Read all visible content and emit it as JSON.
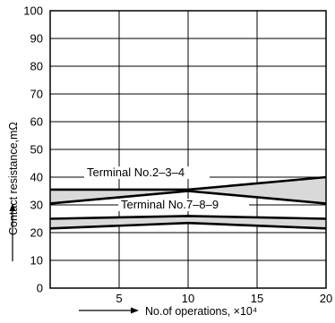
{
  "chart_data": {
    "type": "line",
    "title": "",
    "xlabel": "No.of operations, ×10⁴",
    "ylabel": "Contact resistance,mΩ",
    "xlim": [
      0,
      20
    ],
    "ylim": [
      0,
      100
    ],
    "x_ticks": [
      5,
      10,
      15,
      20
    ],
    "x_tick_labels": [
      "5",
      "10",
      "15",
      "20"
    ],
    "y_ticks": [
      0,
      10,
      20,
      30,
      40,
      50,
      60,
      70,
      80,
      90,
      100
    ],
    "y_tick_labels": [
      "0",
      "10",
      "20",
      "30",
      "40",
      "50",
      "60",
      "70",
      "80",
      "90",
      "100"
    ],
    "grid": true,
    "colors": {
      "band_fill": "#d9d9d9",
      "line": "#000000",
      "grid": "#000000"
    },
    "bands": [
      {
        "name": "Terminal No.2–3–4",
        "x": [
          0,
          10,
          20
        ],
        "upper": [
          35.5,
          35.5,
          40
        ],
        "lower": [
          30.5,
          35,
          30.5
        ]
      },
      {
        "name": "Terminal No.7–8–9",
        "x": [
          0,
          10,
          20
        ],
        "upper": [
          25,
          26,
          25
        ],
        "lower": [
          21.5,
          23.5,
          21.5
        ]
      }
    ]
  }
}
